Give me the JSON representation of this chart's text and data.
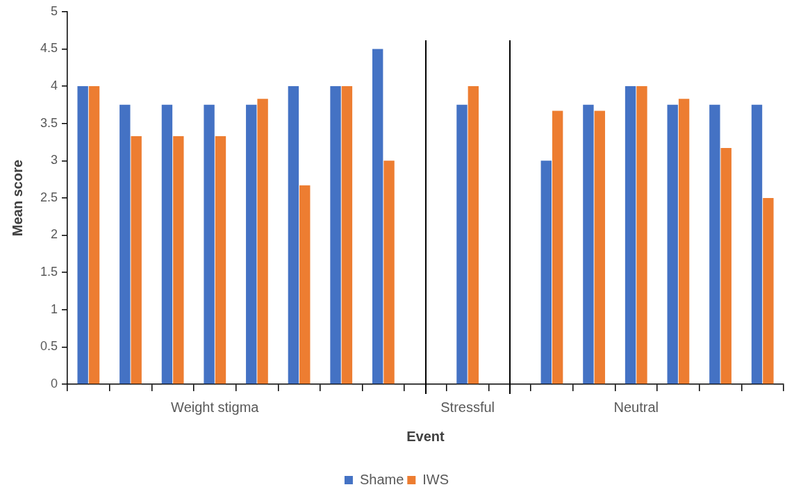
{
  "chart_data": {
    "type": "bar",
    "xlabel": "Event",
    "ylabel": "Mean score",
    "categories": [
      null,
      null,
      null,
      "Weight stigma",
      null,
      null,
      null,
      null,
      null,
      "Stressful",
      null,
      null,
      null,
      "Neutral",
      null,
      null,
      null
    ],
    "series": [
      {
        "name": "Shame",
        "color": "#4472c4",
        "values": [
          4,
          3.75,
          3.75,
          3.75,
          3.75,
          4,
          4,
          4.5,
          null,
          3.75,
          null,
          3,
          3.75,
          4,
          3.75,
          3.75,
          3.75
        ]
      },
      {
        "name": "IWS",
        "color": "#ed7d31",
        "values": [
          4,
          3.33,
          3.33,
          3.33,
          3.83,
          2.67,
          4,
          3,
          null,
          4,
          null,
          3.67,
          3.67,
          4,
          3.83,
          3.17,
          2.5
        ]
      }
    ],
    "ylim": [
      0,
      5
    ],
    "yticks": [
      0,
      0.5,
      1,
      1.5,
      2,
      2.5,
      3,
      3.5,
      4,
      4.5,
      5
    ],
    "grid": false,
    "legend": "bottom"
  }
}
